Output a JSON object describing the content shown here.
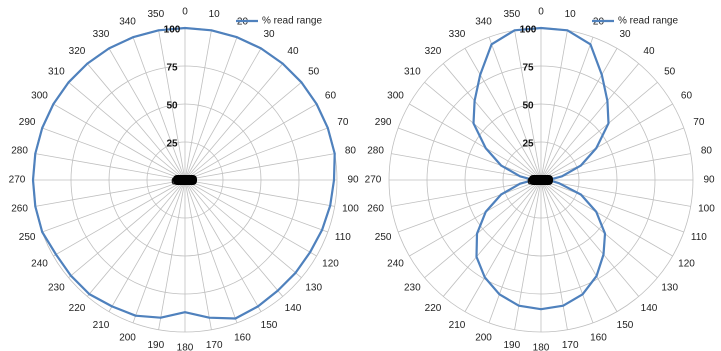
{
  "chart_data": [
    {
      "type": "radar",
      "legend": {
        "label": "% read range",
        "position": "top-right"
      },
      "angle_ticks": [
        "0",
        "10",
        "20",
        "30",
        "40",
        "50",
        "60",
        "70",
        "80",
        "90",
        "100",
        "110",
        "120",
        "130",
        "140",
        "150",
        "160",
        "170",
        "180",
        "190",
        "200",
        "210",
        "220",
        "230",
        "240",
        "250",
        "260",
        "270",
        "280",
        "290",
        "300",
        "310",
        "320",
        "330",
        "340",
        "350"
      ],
      "radial_ticks": [
        "0",
        "25",
        "50",
        "75",
        "100"
      ],
      "rlim": [
        0,
        100
      ],
      "grid": true,
      "series": [
        {
          "name": "% read range",
          "color": "#4f81bd",
          "angles": [
            0,
            10,
            20,
            30,
            40,
            50,
            60,
            70,
            80,
            90,
            100,
            110,
            120,
            130,
            140,
            150,
            160,
            170,
            180,
            190,
            200,
            210,
            220,
            230,
            240,
            250,
            260,
            270,
            280,
            290,
            300,
            310,
            320,
            330,
            340,
            350
          ],
          "values": [
            100,
            100,
            100,
            100,
            100,
            100,
            100,
            100,
            100,
            98,
            97,
            96,
            95,
            95,
            95,
            96,
            97,
            92,
            87,
            92,
            95,
            96,
            98,
            98,
            98,
            100,
            100,
            100,
            100,
            100,
            100,
            100,
            100,
            100,
            100,
            100
          ]
        }
      ]
    },
    {
      "type": "radar",
      "legend": {
        "label": "% read range",
        "position": "top-right"
      },
      "angle_ticks": [
        "0",
        "10",
        "20",
        "30",
        "40",
        "50",
        "60",
        "70",
        "80",
        "90",
        "100",
        "110",
        "120",
        "130",
        "140",
        "150",
        "160",
        "170",
        "180",
        "190",
        "200",
        "210",
        "220",
        "230",
        "240",
        "250",
        "260",
        "270",
        "280",
        "290",
        "300",
        "310",
        "320",
        "330",
        "340",
        "350"
      ],
      "radial_ticks": [
        "0",
        "25",
        "50",
        "75",
        "100"
      ],
      "rlim": [
        0,
        100
      ],
      "grid": true,
      "series": [
        {
          "name": "% read range",
          "color": "#4f81bd",
          "angles": [
            0,
            10,
            20,
            30,
            40,
            50,
            60,
            70,
            80,
            90,
            100,
            110,
            120,
            130,
            140,
            150,
            160,
            170,
            180,
            190,
            200,
            210,
            220,
            230,
            240,
            250,
            260,
            270,
            280,
            290,
            300,
            310,
            320,
            330,
            340,
            350
          ],
          "values": [
            100,
            100,
            95,
            80,
            68,
            58,
            42,
            28,
            14,
            5,
            12,
            28,
            42,
            55,
            64,
            73,
            80,
            84,
            85,
            84,
            80,
            74,
            66,
            55,
            42,
            28,
            14,
            5,
            14,
            28,
            42,
            58,
            68,
            80,
            95,
            100
          ]
        }
      ]
    }
  ]
}
